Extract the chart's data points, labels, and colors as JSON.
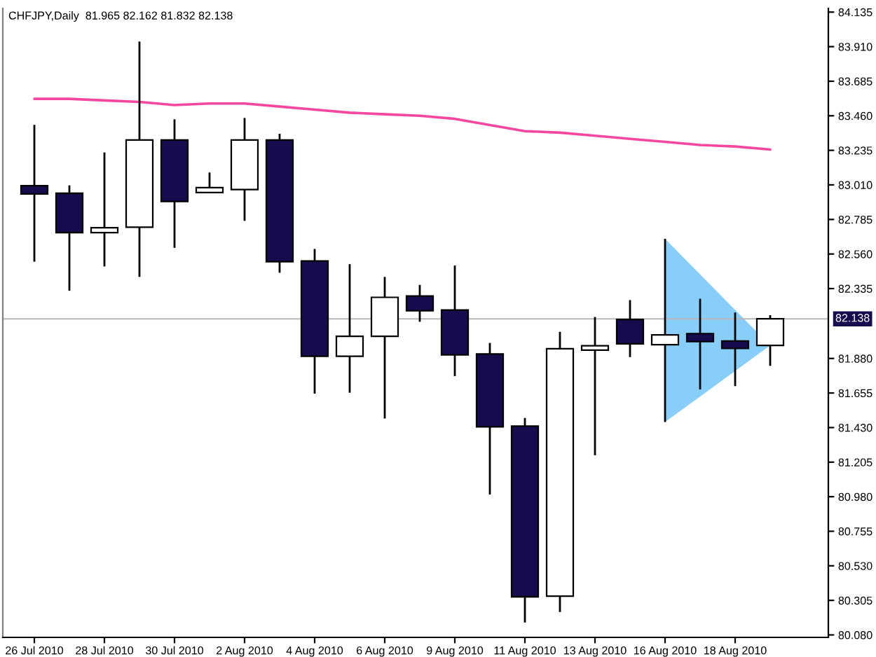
{
  "chart_data": {
    "type": "candlestick",
    "title": "CHFJPY,Daily  81.965 82.162 81.832 82.138",
    "categories": [
      "26 Jul 2010",
      null,
      "28 Jul 2010",
      null,
      "30 Jul 2010",
      null,
      "2 Aug 2010",
      null,
      "4 Aug 2010",
      null,
      "6 Aug 2010",
      null,
      "9 Aug 2010",
      null,
      "11 Aug 2010",
      null,
      "13 Aug 2010",
      null,
      "16 Aug 2010",
      null,
      "18 Aug 2010",
      null
    ],
    "ohlc": [
      [
        83.005,
        83.401,
        82.51,
        82.951
      ],
      [
        82.956,
        83.007,
        82.321,
        82.699
      ],
      [
        82.699,
        83.221,
        82.479,
        82.731
      ],
      [
        82.735,
        83.943,
        82.411,
        83.302
      ],
      [
        83.302,
        83.437,
        82.6,
        82.902
      ],
      [
        82.96,
        83.091,
        82.96,
        82.992
      ],
      [
        82.98,
        83.446,
        82.776,
        83.302
      ],
      [
        83.302,
        83.343,
        82.438,
        82.51
      ],
      [
        82.515,
        82.593,
        81.651,
        81.894
      ],
      [
        81.894,
        82.494,
        81.657,
        82.024
      ],
      [
        82.024,
        82.411,
        81.489,
        82.278
      ],
      [
        82.287,
        82.359,
        82.119,
        82.191
      ],
      [
        82.195,
        82.485,
        81.765,
        81.903
      ],
      [
        81.909,
        81.981,
        80.994,
        81.435
      ],
      [
        81.439,
        81.493,
        80.161,
        80.328
      ],
      [
        80.332,
        82.053,
        80.229,
        81.943
      ],
      [
        81.934,
        82.15,
        81.25,
        81.963
      ],
      [
        82.134,
        82.26,
        81.889,
        81.975
      ],
      [
        81.97,
        82.659,
        81.466,
        82.033
      ],
      [
        82.042,
        82.269,
        81.678,
        81.99
      ],
      [
        81.993,
        82.179,
        81.7,
        81.945
      ],
      [
        81.965,
        82.162,
        81.832,
        82.138
      ]
    ],
    "colors": [
      "#140c4c",
      "#140c4c",
      "#ffffff",
      "#ffffff",
      "#140c4c",
      "#ffffff",
      "#ffffff",
      "#140c4c",
      "#140c4c",
      "#ffffff",
      "#ffffff",
      "#140c4c",
      "#140c4c",
      "#140c4c",
      "#140c4c",
      "#ffffff",
      "#ffffff",
      "#140c4c",
      "#ffffff",
      "#140c4c",
      "#140c4c",
      "#ffffff"
    ],
    "series": [
      {
        "type": "line",
        "color": "#f5479e",
        "values": [
          83.57,
          83.57,
          83.56,
          83.55,
          83.53,
          83.54,
          83.54,
          83.52,
          83.5,
          83.48,
          83.47,
          83.46,
          83.44,
          83.4,
          83.36,
          83.35,
          83.33,
          83.31,
          83.29,
          83.27,
          83.26,
          83.24
        ]
      }
    ],
    "ylim": [
      80.064,
      84.159
    ],
    "yticks": [
      84.135,
      {
        "value": 83.91,
        "label": "83.910"
      },
      83.685,
      {
        "value": 83.46,
        "label": "83.460"
      },
      83.235,
      {
        "value": 83.01,
        "label": "83.010"
      },
      82.785,
      {
        "value": 82.56,
        "label": "82.560"
      },
      82.335,
      {
        "value": 81.88,
        "label": "81.880"
      },
      81.655,
      {
        "value": 81.43,
        "label": "81.430"
      },
      81.205,
      {
        "value": 80.98,
        "label": "80.980"
      },
      80.755,
      {
        "value": 80.53,
        "label": "80.530"
      },
      80.305,
      {
        "value": 80.08,
        "label": "80.080"
      }
    ],
    "ref_lines": [
      {
        "axis": "y",
        "value": 82.138,
        "label": "82.138",
        "color": "#b8b8b8"
      }
    ]
  }
}
